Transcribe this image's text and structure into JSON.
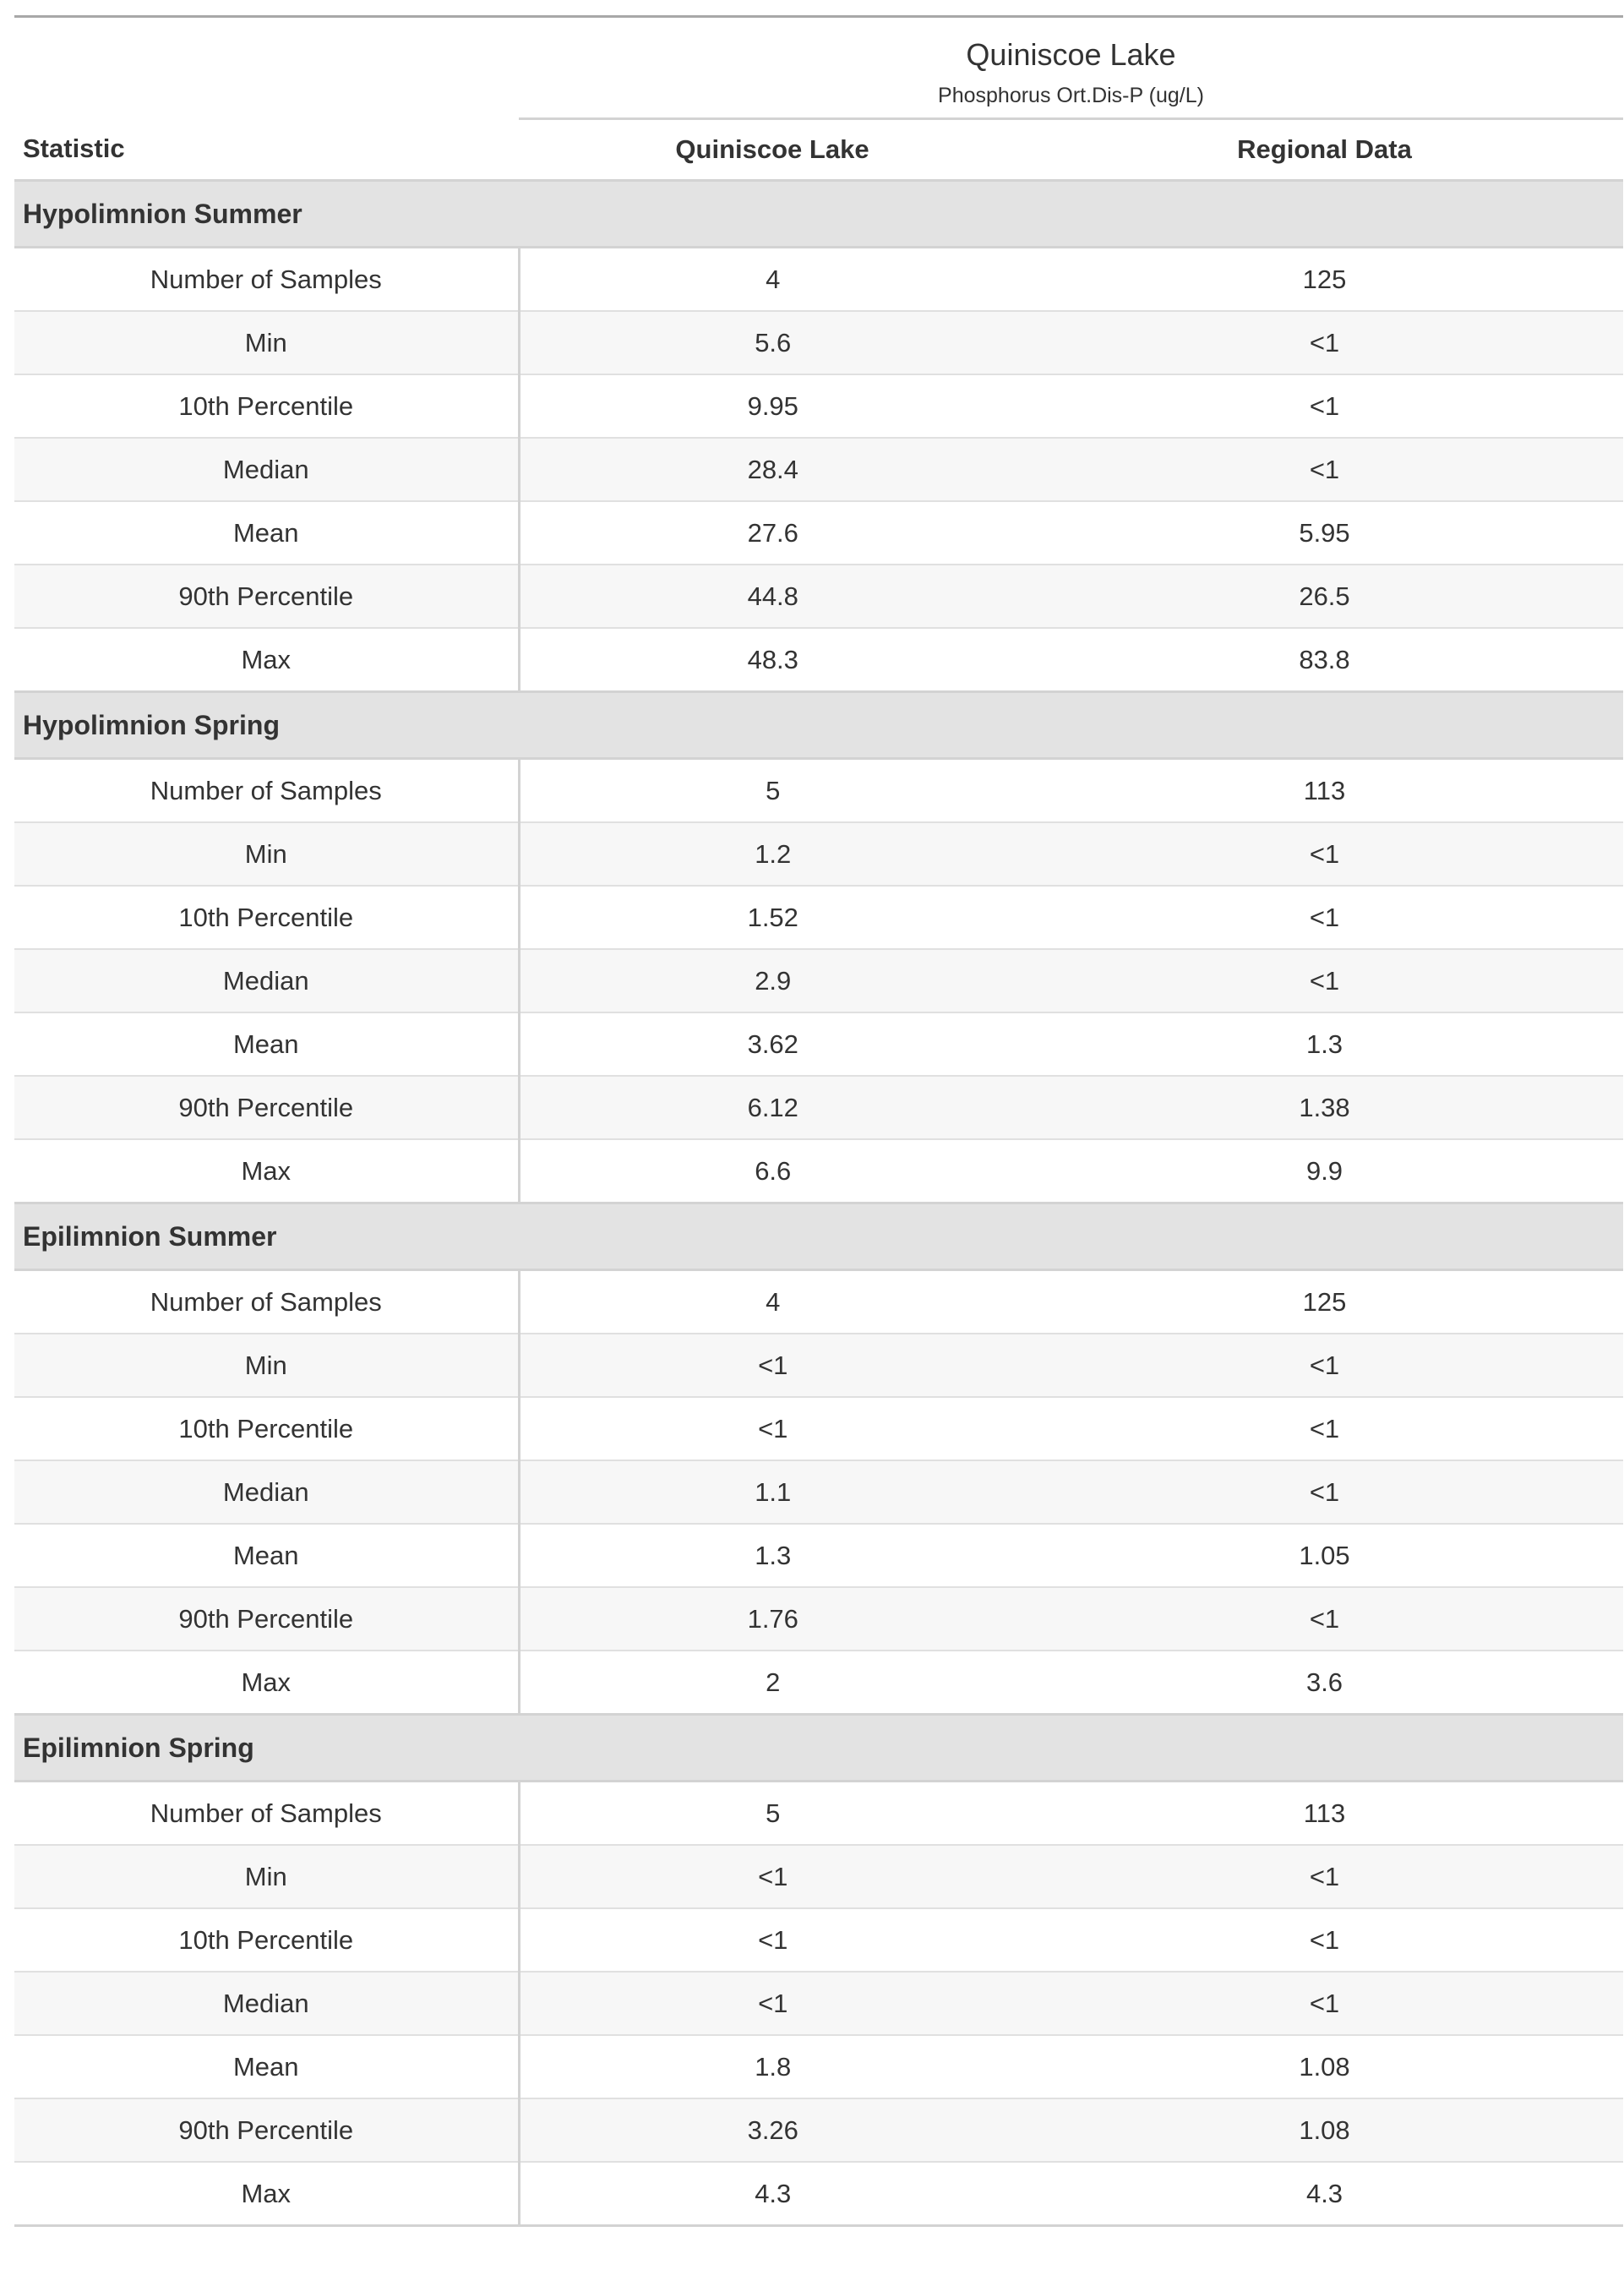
{
  "table": {
    "title": "Quiniscoe Lake",
    "subtitle": "Phosphorus Ort.Dis-P (ug/L)",
    "columns": [
      "Statistic",
      "Quiniscoe Lake",
      "Regional Data"
    ],
    "groups": [
      {
        "label": "Hypolimnion Summer",
        "rows": [
          {
            "stat": "Number of Samples",
            "lake": "4",
            "regional": "125"
          },
          {
            "stat": "Min",
            "lake": "5.6",
            "regional": "<1"
          },
          {
            "stat": "10th Percentile",
            "lake": "9.95",
            "regional": "<1"
          },
          {
            "stat": "Median",
            "lake": "28.4",
            "regional": "<1"
          },
          {
            "stat": "Mean",
            "lake": "27.6",
            "regional": "5.95"
          },
          {
            "stat": "90th Percentile",
            "lake": "44.8",
            "regional": "26.5"
          },
          {
            "stat": "Max",
            "lake": "48.3",
            "regional": "83.8"
          }
        ]
      },
      {
        "label": "Hypolimnion Spring",
        "rows": [
          {
            "stat": "Number of Samples",
            "lake": "5",
            "regional": "113"
          },
          {
            "stat": "Min",
            "lake": "1.2",
            "regional": "<1"
          },
          {
            "stat": "10th Percentile",
            "lake": "1.52",
            "regional": "<1"
          },
          {
            "stat": "Median",
            "lake": "2.9",
            "regional": "<1"
          },
          {
            "stat": "Mean",
            "lake": "3.62",
            "regional": "1.3"
          },
          {
            "stat": "90th Percentile",
            "lake": "6.12",
            "regional": "1.38"
          },
          {
            "stat": "Max",
            "lake": "6.6",
            "regional": "9.9"
          }
        ]
      },
      {
        "label": "Epilimnion Summer",
        "rows": [
          {
            "stat": "Number of Samples",
            "lake": "4",
            "regional": "125"
          },
          {
            "stat": "Min",
            "lake": "<1",
            "regional": "<1"
          },
          {
            "stat": "10th Percentile",
            "lake": "<1",
            "regional": "<1"
          },
          {
            "stat": "Median",
            "lake": "1.1",
            "regional": "<1"
          },
          {
            "stat": "Mean",
            "lake": "1.3",
            "regional": "1.05"
          },
          {
            "stat": "90th Percentile",
            "lake": "1.76",
            "regional": "<1"
          },
          {
            "stat": "Max",
            "lake": "2",
            "regional": "3.6"
          }
        ]
      },
      {
        "label": "Epilimnion Spring",
        "rows": [
          {
            "stat": "Number of Samples",
            "lake": "5",
            "regional": "113"
          },
          {
            "stat": "Min",
            "lake": "<1",
            "regional": "<1"
          },
          {
            "stat": "10th Percentile",
            "lake": "<1",
            "regional": "<1"
          },
          {
            "stat": "Median",
            "lake": "<1",
            "regional": "<1"
          },
          {
            "stat": "Mean",
            "lake": "1.8",
            "regional": "1.08"
          },
          {
            "stat": "90th Percentile",
            "lake": "3.26",
            "regional": "1.08"
          },
          {
            "stat": "Max",
            "lake": "4.3",
            "regional": "4.3"
          }
        ]
      }
    ]
  }
}
